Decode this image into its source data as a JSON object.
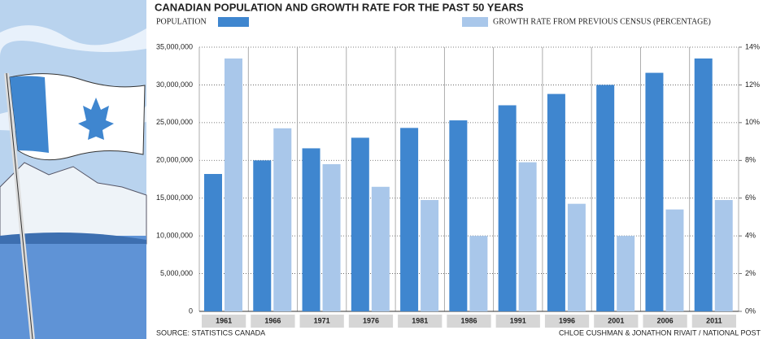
{
  "chart_data": {
    "type": "bar",
    "title": "CANADIAN POPULATION AND GROWTH RATE FOR THE PAST 50 YEARS",
    "categories": [
      "1961",
      "1966",
      "1971",
      "1976",
      "1981",
      "1986",
      "1991",
      "1996",
      "2001",
      "2006",
      "2011"
    ],
    "series": [
      {
        "name": "POPULATION",
        "color": "#3f86cf",
        "values": [
          18200000,
          20000000,
          21600000,
          23000000,
          24300000,
          25300000,
          27300000,
          28800000,
          30000000,
          31600000,
          33500000
        ]
      },
      {
        "name": "GROWTH RATE FROM PREVIOUS CENSUS (PERCENTAGE)",
        "color": "#a9c7ea",
        "axis": "y2",
        "values": [
          13.4,
          9.7,
          7.8,
          6.6,
          5.9,
          4.0,
          7.9,
          5.7,
          4.0,
          5.4,
          5.9
        ]
      }
    ],
    "ylim": [
      0,
      35000000
    ],
    "yticks": [
      0,
      {
        "value": 5000000,
        "label": "5,000,000"
      },
      {
        "value": 10000000,
        "label": "10,000,000"
      },
      {
        "value": 15000000,
        "label": "15,000,000"
      },
      {
        "value": 20000000,
        "label": "20,000,000"
      },
      {
        "value": 25000000,
        "label": "25,000,000"
      },
      {
        "value": 30000000,
        "label": "30,000,000"
      },
      {
        "value": 35000000,
        "label": "35,000,000"
      }
    ],
    "y2lim": [
      0,
      14
    ],
    "y2ticks": [
      {
        "value": 0,
        "label": "0%"
      },
      {
        "value": 2,
        "label": "2%"
      },
      {
        "value": 4,
        "label": "4%"
      },
      {
        "value": 6,
        "label": "6%"
      },
      {
        "value": 8,
        "label": "8%"
      },
      {
        "value": 10,
        "label": "10%"
      },
      {
        "value": 12,
        "label": "12%"
      },
      {
        "value": 14,
        "label": "14%"
      }
    ],
    "grid": true,
    "source": "SOURCE: STATISTICS CANADA",
    "credit": "CHLOE CUSHMAN & JONATHON RIVAIT / NATIONAL POST"
  }
}
